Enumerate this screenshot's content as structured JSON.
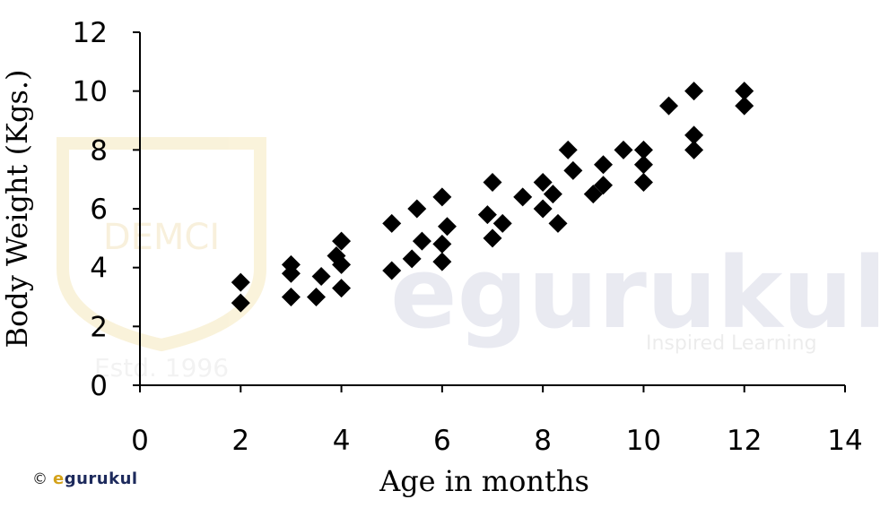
{
  "chart_data": {
    "type": "scatter",
    "title": "",
    "xlabel": "Age in months",
    "ylabel": "Body Weight (Kgs.)",
    "xlim": [
      0,
      14
    ],
    "ylim": [
      0,
      12
    ],
    "xticks": [
      0,
      2,
      4,
      6,
      8,
      10,
      12,
      14
    ],
    "yticks": [
      0,
      2,
      4,
      6,
      8,
      10,
      12
    ],
    "grid": false,
    "legend": "none",
    "marker": "diamond",
    "marker_color": "#000000",
    "series": [
      {
        "points": [
          [
            2,
            3.5
          ],
          [
            2,
            2.8
          ],
          [
            3,
            4.1
          ],
          [
            3,
            3.8
          ],
          [
            3,
            3.0
          ],
          [
            3.5,
            3.0
          ],
          [
            3.6,
            3.7
          ],
          [
            4,
            4.9
          ],
          [
            3.9,
            4.4
          ],
          [
            4,
            4.1
          ],
          [
            4,
            3.3
          ],
          [
            5,
            5.5
          ],
          [
            5,
            3.9
          ],
          [
            5.4,
            4.3
          ],
          [
            5.5,
            6.0
          ],
          [
            5.6,
            4.9
          ],
          [
            6,
            6.4
          ],
          [
            6,
            4.8
          ],
          [
            6,
            4.2
          ],
          [
            6.1,
            5.4
          ],
          [
            6.9,
            5.8
          ],
          [
            7,
            6.9
          ],
          [
            7,
            5.0
          ],
          [
            7.2,
            5.5
          ],
          [
            7.6,
            6.4
          ],
          [
            8,
            6.9
          ],
          [
            8,
            6.0
          ],
          [
            8.2,
            6.5
          ],
          [
            8.3,
            5.5
          ],
          [
            8.5,
            8.0
          ],
          [
            8.6,
            7.3
          ],
          [
            9,
            6.5
          ],
          [
            9.2,
            7.5
          ],
          [
            9.2,
            6.8
          ],
          [
            9.6,
            8.0
          ],
          [
            10,
            8.0
          ],
          [
            10,
            7.5
          ],
          [
            10,
            6.9
          ],
          [
            10.5,
            9.5
          ],
          [
            11,
            10.0
          ],
          [
            11,
            8.5
          ],
          [
            11,
            8.0
          ],
          [
            12,
            10.0
          ],
          [
            12,
            9.5
          ]
        ]
      }
    ]
  },
  "watermarks": {
    "left_logo": "DEMCI",
    "left_estd": "Estd. 1996",
    "center_logo": "egurukul",
    "center_tagline": "Inspired Learning"
  },
  "footer": {
    "copyright_symbol": "©",
    "brand_e": "e",
    "brand_rest": "gurukul"
  }
}
